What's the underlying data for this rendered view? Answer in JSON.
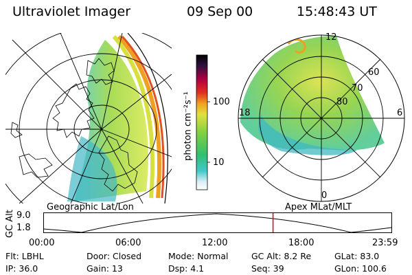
{
  "header": {
    "instrument": "Ultraviolet Imager",
    "date": "09 Sep 00",
    "time": "15:48:43 UT"
  },
  "left_panel": {
    "label": "Geographic Lat/Lon"
  },
  "right_panel": {
    "label": "Apex MLat/MLT",
    "mlt_labels": [
      "12",
      "18",
      "6",
      "0"
    ],
    "lat_labels": [
      "60",
      "70",
      "80"
    ]
  },
  "colorbar": {
    "unit_label": "photon cm⁻²s⁻¹",
    "tick_labels": [
      "100",
      "10"
    ]
  },
  "timeline": {
    "ylabel": "GC Alt",
    "yticks": [
      "9.0",
      "1.8"
    ],
    "xticks": [
      "00:00",
      "06:00",
      "12:00",
      "18:00",
      "23:59"
    ],
    "current_time_fraction": 0.66,
    "marker_color": "#e00000"
  },
  "info": {
    "filter": "Flt: LBHL",
    "door": "Door: Closed",
    "mode": "Mode: Normal",
    "gc_alt": "GC Alt: 8.2 Re",
    "glat": "GLat:  83.0",
    "ip": "IP: 36.0",
    "gain": "Gain: 13",
    "dsp": "Dsp:     4.1",
    "seq": "Seq: 39",
    "glon": "GLon: 100.6"
  }
}
